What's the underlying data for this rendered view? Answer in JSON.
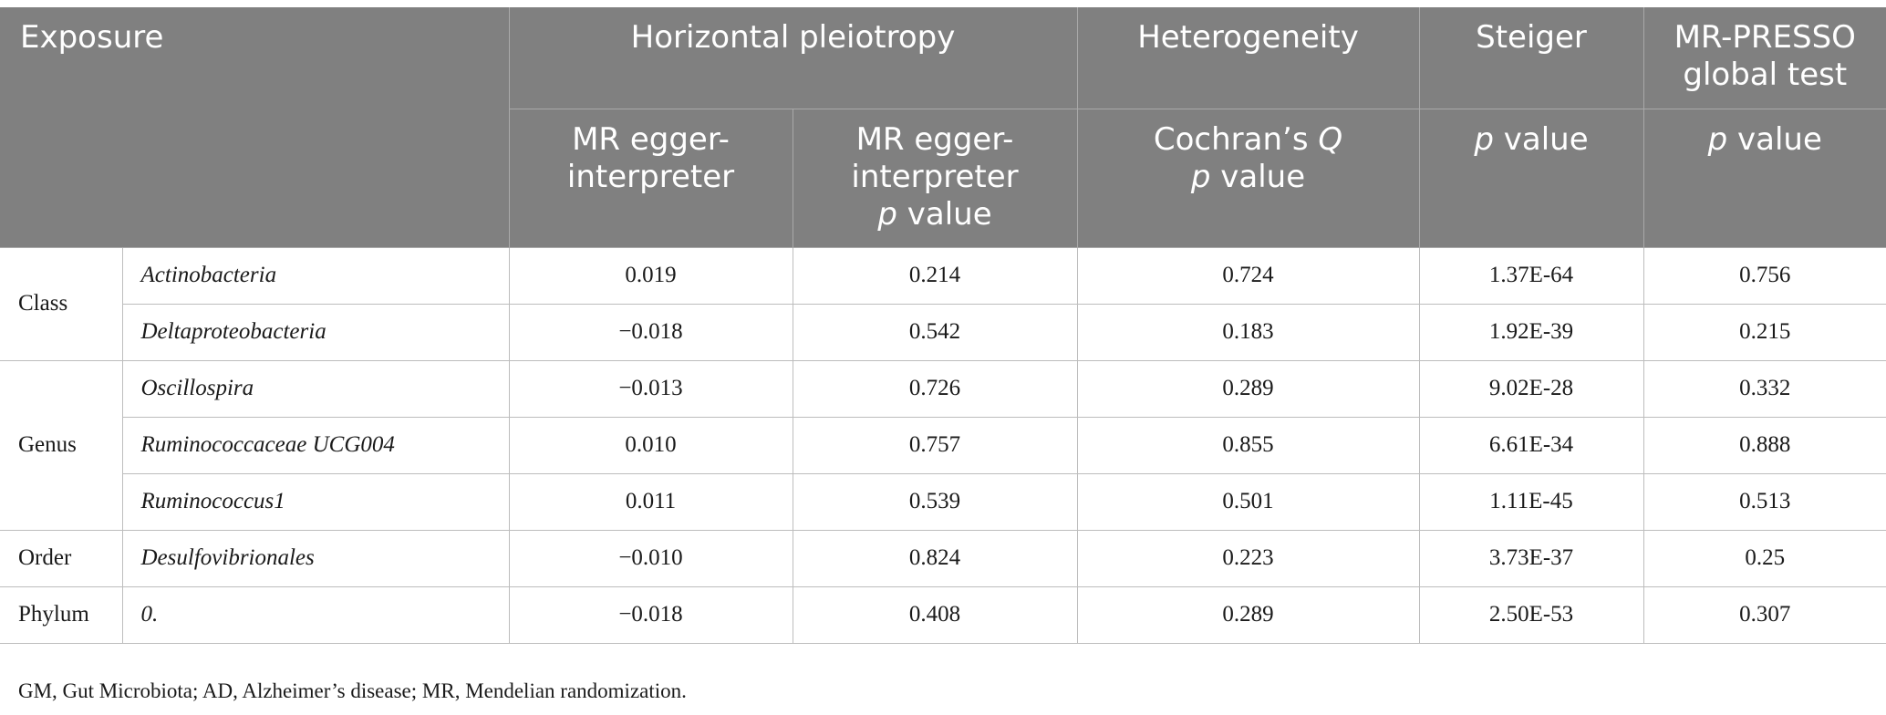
{
  "header": {
    "exposure": "Exposure",
    "horizontal_pleiotropy": "Horizontal pleiotropy",
    "heterogeneity": "Heterogeneity",
    "steiger": "Steiger",
    "mr_presso_line1": "MR-PRESSO",
    "mr_presso_line2": "global test",
    "sub_egger_line1": "MR egger-",
    "sub_egger_line2": "interpreter",
    "sub_egger_p_line1": "MR egger-",
    "sub_egger_p_line2": "interpreter",
    "p_italic": "p",
    "value_word": " value",
    "cochran_prefix": "Cochran’s ",
    "cochran_q": "Q",
    "steiger_p": "p",
    "presso_p": "p"
  },
  "rows": [
    {
      "category": "Class",
      "name": "Actinobacteria",
      "egger": "0.019",
      "egger_p": "0.214",
      "cochran_p": "0.724",
      "steiger_p": "1.37E-64",
      "presso_p": "0.756"
    },
    {
      "category": "",
      "name": "Deltaproteobacteria",
      "egger": "−0.018",
      "egger_p": "0.542",
      "cochran_p": "0.183",
      "steiger_p": "1.92E-39",
      "presso_p": "0.215"
    },
    {
      "category": "Genus",
      "name": "Oscillospira",
      "egger": "−0.013",
      "egger_p": "0.726",
      "cochran_p": "0.289",
      "steiger_p": "9.02E-28",
      "presso_p": "0.332"
    },
    {
      "category": "",
      "name": "Ruminococcaceae UCG004",
      "egger": "0.010",
      "egger_p": "0.757",
      "cochran_p": "0.855",
      "steiger_p": "6.61E-34",
      "presso_p": "0.888"
    },
    {
      "category": "",
      "name": "Ruminococcus1",
      "egger": "0.011",
      "egger_p": "0.539",
      "cochran_p": "0.501",
      "steiger_p": "1.11E-45",
      "presso_p": "0.513"
    },
    {
      "category": "Order",
      "name": "Desulfovibrionales",
      "egger": "−0.010",
      "egger_p": "0.824",
      "cochran_p": "0.223",
      "steiger_p": "3.73E-37",
      "presso_p": "0.25"
    },
    {
      "category": "Phylum",
      "name": "0.",
      "egger": "−0.018",
      "egger_p": "0.408",
      "cochran_p": "0.289",
      "steiger_p": "2.50E-53",
      "presso_p": "0.307"
    }
  ],
  "footnote": "GM, Gut Microbiota; AD, Alzheimer’s disease; MR, Mendelian randomization."
}
